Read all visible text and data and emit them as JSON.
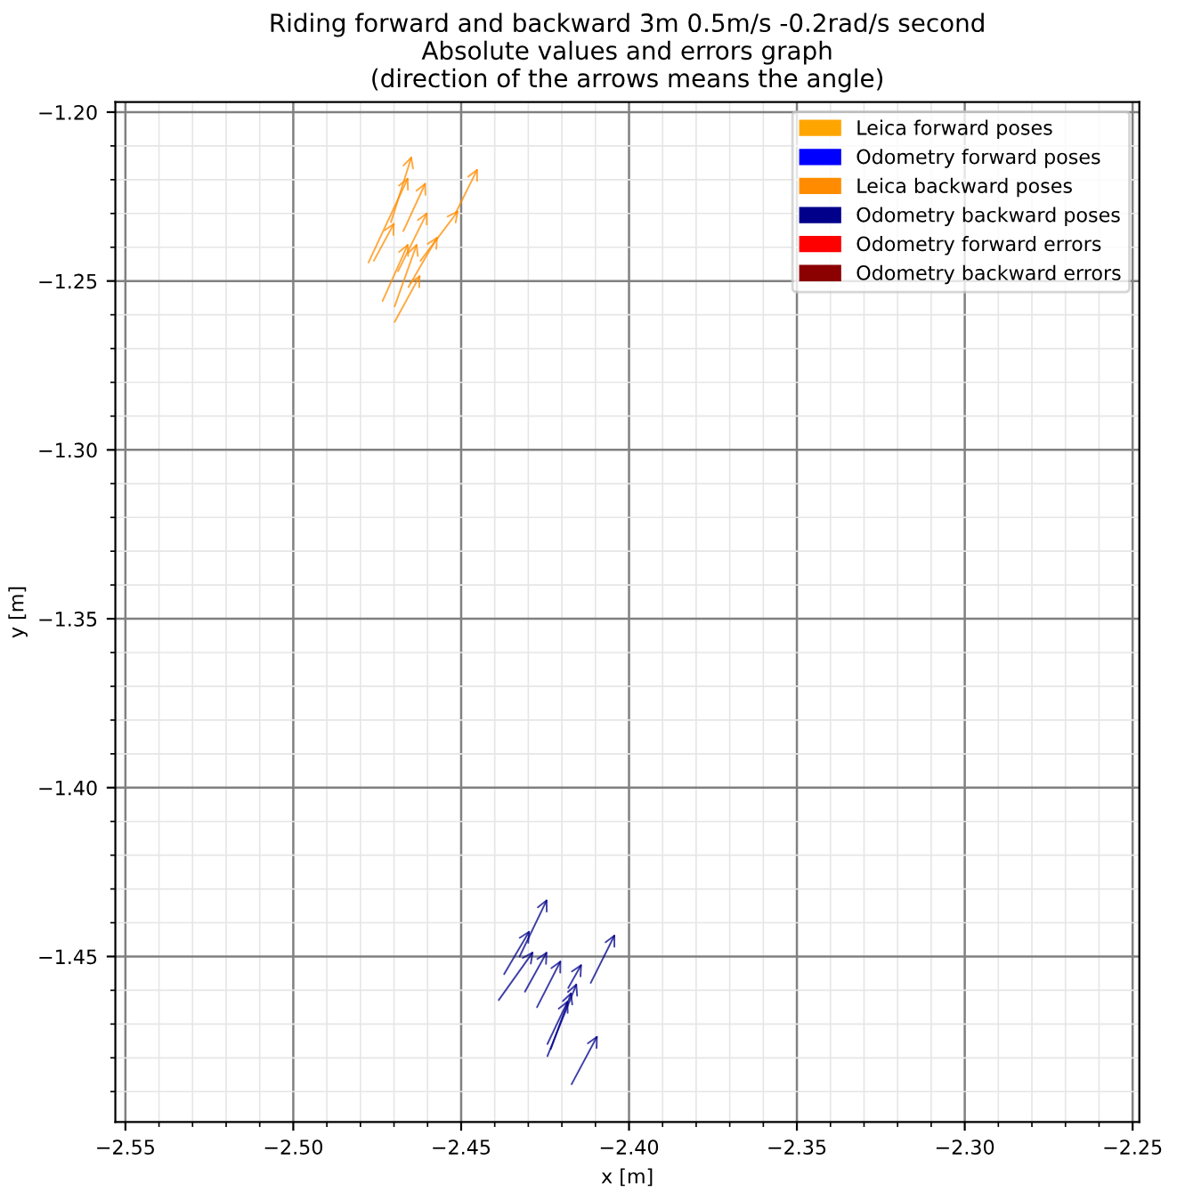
{
  "chart_data": {
    "type": "line",
    "title": "Riding forward and backward 3m 0.5m/s -0.2rad/s second\nAbsolute values and errors graph\n(direction of the arrows means the angle)",
    "xlabel": "x [m]",
    "ylabel": "y [m]",
    "xlim": [
      -2.553,
      -2.248
    ],
    "ylim": [
      -1.499,
      -1.197
    ],
    "xticks": [
      {
        "value": -2.55,
        "label": "−2.55"
      },
      {
        "value": -2.5,
        "label": "−2.50"
      },
      {
        "value": -2.45,
        "label": "−2.45"
      },
      {
        "value": -2.4,
        "label": "−2.40"
      },
      {
        "value": -2.35,
        "label": "−2.35"
      },
      {
        "value": -2.3,
        "label": "−2.30"
      },
      {
        "value": -2.25,
        "label": "−2.25"
      }
    ],
    "yticks": [
      {
        "value": -1.2,
        "label": "−1.20"
      },
      {
        "value": -1.25,
        "label": "−1.25"
      },
      {
        "value": -1.3,
        "label": "−1.30"
      },
      {
        "value": -1.35,
        "label": "−1.35"
      },
      {
        "value": -1.4,
        "label": "−1.40"
      },
      {
        "value": -1.45,
        "label": "−1.45"
      }
    ],
    "grid": true,
    "legend": "top right",
    "line_style": "solid",
    "series": [
      {
        "name": "Leica forward poses",
        "color": "#ffa500"
      },
      {
        "name": "Odometry forward poses",
        "color": "#0000ff"
      },
      {
        "name": "Leica backward poses",
        "color": "#ff8c00",
        "x": [
          -2.4709,
          -2.4647,
          null,
          -2.4776,
          -2.4657,
          null,
          -2.4672,
          -2.4605,
          null,
          -2.4517,
          -2.445,
          null,
          -2.4621,
          -2.4507,
          null,
          -2.4688,
          -2.46,
          null,
          -2.4657,
          -2.4569,
          null,
          -2.4734,
          -2.4657,
          null,
          -2.4698,
          -2.4631,
          null,
          -2.4698,
          -2.4621,
          null,
          -2.476,
          -2.4698
        ],
        "values": [
          -1.2326,
          -1.2129,
          null,
          -1.2445,
          -1.2192,
          null,
          -1.2352,
          -1.2207,
          null,
          -1.23,
          -1.2166,
          null,
          -1.244,
          -1.229,
          null,
          -1.2471,
          -1.2295,
          null,
          -1.2518,
          -1.2367,
          null,
          -1.2559,
          -1.2388,
          null,
          -1.2575,
          -1.2388,
          null,
          -1.2621,
          -1.2481,
          null,
          -1.244,
          -1.2326
        ]
      },
      {
        "name": "Odometry backward poses",
        "color": "#00008b",
        "x": [
          -2.4326,
          -2.4243,
          null,
          -2.4114,
          -2.4041,
          null,
          -2.431,
          -2.4243,
          null,
          -2.4274,
          -2.4202,
          null,
          -2.4181,
          -2.414,
          null,
          -2.4243,
          -2.4155,
          null,
          -2.4233,
          -2.4171,
          null,
          -2.4243,
          -2.4181,
          null,
          -2.4171,
          -2.4093,
          null,
          -2.4388,
          -2.4284,
          null,
          -2.4372,
          -2.4295
        ],
        "values": [
          -1.45,
          -1.4329,
          null,
          -1.4578,
          -1.4433,
          null,
          -1.4604,
          -1.4484,
          null,
          -1.465,
          -1.451,
          null,
          -1.4593,
          -1.4521,
          null,
          -1.4795,
          -1.4578,
          null,
          -1.4774,
          -1.4604,
          null,
          -1.4759,
          -1.4629,
          null,
          -1.4878,
          -1.4733,
          null,
          -1.4629,
          -1.4484,
          null,
          -1.4552,
          -1.4422
        ]
      },
      {
        "name": "Odometry forward errors",
        "color": "#ff0000"
      },
      {
        "name": "Odometry backward errors",
        "color": "#8b0000"
      }
    ]
  }
}
